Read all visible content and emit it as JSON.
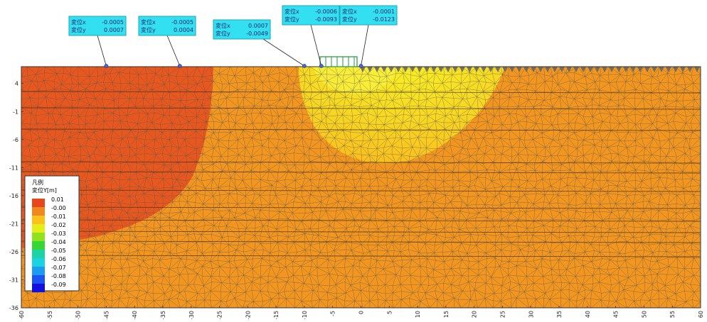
{
  "callouts": [
    {
      "line1_label": "変位x",
      "line1_value": "-0.0005",
      "line2_label": "変位y",
      "line2_value": "0.0007",
      "target_x": -45
    },
    {
      "line1_label": "変位x",
      "line1_value": "-0.0005",
      "line2_label": "変位y",
      "line2_value": "0.0004",
      "target_x": -32
    },
    {
      "line1_label": "変位x",
      "line1_value": "0.0007",
      "line2_label": "変位y",
      "line2_value": "-0.0049",
      "target_x": -10
    },
    {
      "line1_label": "変位x",
      "line1_value": "-0.0006",
      "line2_label": "変位y",
      "line2_value": "-0.0093",
      "target_x": -7
    },
    {
      "line1_label": "変位x",
      "line1_value": "-0.0001",
      "line2_label": "変位y",
      "line2_value": "-0.0123",
      "target_x": 0
    }
  ],
  "legend": {
    "title": "凡例",
    "subtitle": "変位Y[m]",
    "entries": [
      {
        "label": "0.01",
        "color": "#e8461d"
      },
      {
        "label": "-0.00",
        "color": "#f08820"
      },
      {
        "label": "-0.01",
        "color": "#fbc21c"
      },
      {
        "label": "-0.02",
        "color": "#e6ee1a"
      },
      {
        "label": "-0.03",
        "color": "#8fe21c"
      },
      {
        "label": "-0.04",
        "color": "#36d634"
      },
      {
        "label": "-0.05",
        "color": "#1cd3a8"
      },
      {
        "label": "-0.06",
        "color": "#1ad2e2"
      },
      {
        "label": "-0.07",
        "color": "#1a9cf0"
      },
      {
        "label": "-0.08",
        "color": "#1a54f2"
      },
      {
        "label": "-0.09",
        "color": "#1010e0"
      }
    ]
  },
  "axes": {
    "y_ticks": [
      "4",
      "-1",
      "-6",
      "-11",
      "-16",
      "-21",
      "-26",
      "-31",
      "-36"
    ],
    "x_ticks": [
      "-60",
      "-55",
      "-50",
      "-45",
      "-40",
      "-35",
      "-30",
      "-25",
      "-20",
      "-15",
      "-10",
      "-5",
      "0",
      "5",
      "10",
      "15",
      "20",
      "25",
      "30",
      "35",
      "40",
      "45",
      "50",
      "55",
      "60"
    ]
  },
  "colors": {
    "zone_positive": "#e8581e",
    "zone_base": "#f2961f",
    "zone_settlement_outer": "#fbbf1e",
    "zone_settlement_inner": "#f7e020",
    "mesh": "#555555",
    "load": "#1f9a3b"
  }
}
